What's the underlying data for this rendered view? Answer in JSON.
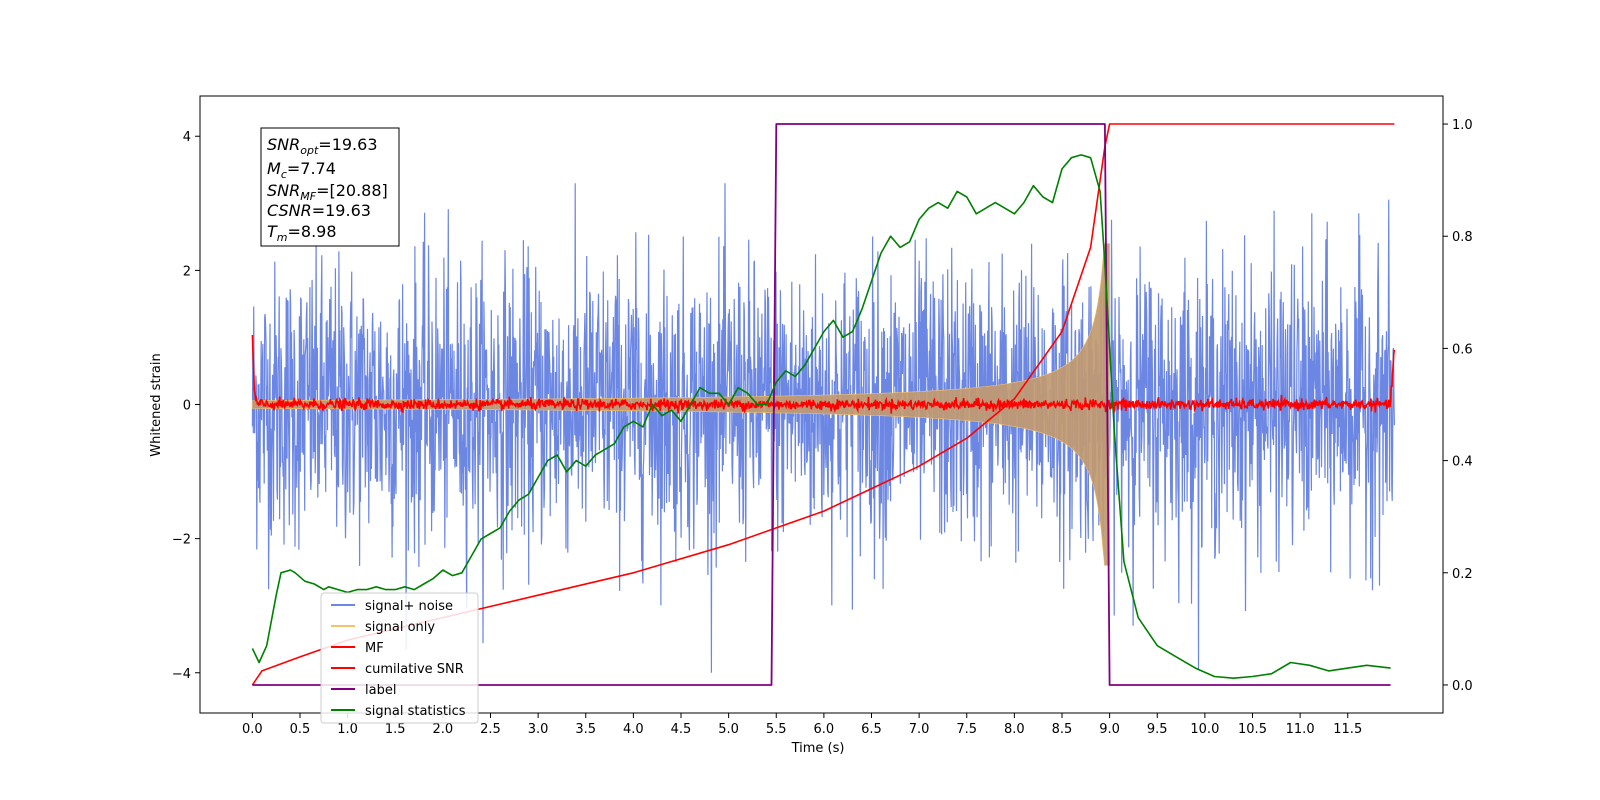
{
  "chart_data": {
    "type": "line",
    "title": "",
    "xlabel": "Time (s)",
    "ylabel": "Whitened strain",
    "ylabel_right": "",
    "xlim": [
      -0.55,
      12.5
    ],
    "ylim": [
      -4.6,
      4.6
    ],
    "ylim_right": [
      -0.05,
      1.05
    ],
    "x_ticks": [
      "0.0",
      "0.5",
      "1.0",
      "1.5",
      "2.0",
      "2.5",
      "3.0",
      "3.5",
      "4.0",
      "4.5",
      "5.0",
      "5.5",
      "6.0",
      "6.5",
      "7.0",
      "7.5",
      "8.0",
      "8.5",
      "9.0",
      "9.5",
      "10.0",
      "10.5",
      "11.0",
      "11.5"
    ],
    "y_ticks_left": [
      "−4",
      "−2",
      "0",
      "2",
      "4"
    ],
    "y_ticks_right": [
      "0.0",
      "0.2",
      "0.4",
      "0.6",
      "0.8",
      "1.0"
    ],
    "annotation": {
      "lines": [
        {
          "name": "SNR",
          "sub": "opt",
          "value": "=19.63"
        },
        {
          "name": "M",
          "sub": "c",
          "value": "=7.74"
        },
        {
          "name": "SNR",
          "sub": "MF",
          "value": "=[20.88]"
        },
        {
          "name": "CSNR",
          "sub": "",
          "value": "=19.63"
        },
        {
          "name": "T",
          "sub": "m",
          "value": "=8.98"
        }
      ]
    },
    "legend": {
      "placement": "lower-left",
      "entries": [
        "signal+ noise",
        "signal only",
        "MF",
        "cumilative SNR",
        "label",
        "signal statistics"
      ]
    },
    "colors": {
      "signal_noise": "#6b86e3",
      "signal_only": "#f5c26b",
      "overlap": "#c19a70",
      "mf": "#ff0000",
      "cumulative_snr": "#ff0000",
      "label": "#800080",
      "signal_statistics": "#008000"
    },
    "series": [
      {
        "name": "signal+ noise",
        "axis": "left",
        "description_values": {
          "x_start": 0.0,
          "x_end": 11.99,
          "typical_envelope": 2.3,
          "max": 3.3,
          "min": -4.0
        }
      },
      {
        "name": "signal only",
        "axis": "left",
        "chirp_start": 0.0,
        "chirp_end": 9.0,
        "peak_amplitude": 2.4
      },
      {
        "name": "MF",
        "axis": "left",
        "x": [
          0.0,
          0.02,
          0.05,
          11.95,
          11.99
        ],
        "y": [
          1.0,
          0.2,
          0.0,
          0.0,
          0.9
        ],
        "noise_amplitude": 0.08
      },
      {
        "name": "cumilative SNR",
        "axis": "right",
        "x": [
          0.0,
          0.1,
          0.5,
          1.0,
          2.0,
          3.0,
          4.0,
          5.0,
          5.5,
          6.0,
          6.5,
          7.0,
          7.5,
          8.0,
          8.5,
          8.8,
          8.95,
          9.0,
          11.99
        ],
        "y": [
          0.0,
          0.025,
          0.05,
          0.08,
          0.12,
          0.16,
          0.2,
          0.25,
          0.28,
          0.31,
          0.35,
          0.39,
          0.44,
          0.51,
          0.63,
          0.78,
          0.96,
          1.0,
          1.0
        ]
      },
      {
        "name": "label",
        "axis": "right",
        "x": [
          0.0,
          5.45,
          5.5,
          8.95,
          9.0,
          11.95
        ],
        "y": [
          0.0,
          0.0,
          1.0,
          1.0,
          0.0,
          0.0
        ]
      },
      {
        "name": "signal statistics",
        "axis": "right",
        "x": [
          0.0,
          0.07,
          0.15,
          0.25,
          0.3,
          0.4,
          0.45,
          0.55,
          0.65,
          0.75,
          0.8,
          0.9,
          1.0,
          1.1,
          1.2,
          1.3,
          1.4,
          1.5,
          1.6,
          1.7,
          1.8,
          1.9,
          2.0,
          2.1,
          2.2,
          2.3,
          2.4,
          2.5,
          2.6,
          2.7,
          2.8,
          2.9,
          3.0,
          3.1,
          3.2,
          3.3,
          3.4,
          3.5,
          3.6,
          3.7,
          3.8,
          3.9,
          4.0,
          4.1,
          4.2,
          4.3,
          4.4,
          4.5,
          4.6,
          4.7,
          4.8,
          4.9,
          5.0,
          5.1,
          5.2,
          5.3,
          5.4,
          5.5,
          5.6,
          5.7,
          5.8,
          5.9,
          6.0,
          6.1,
          6.2,
          6.3,
          6.4,
          6.5,
          6.6,
          6.7,
          6.8,
          6.9,
          7.0,
          7.1,
          7.2,
          7.3,
          7.4,
          7.5,
          7.6,
          7.7,
          7.8,
          7.9,
          8.0,
          8.1,
          8.2,
          8.3,
          8.4,
          8.5,
          8.6,
          8.7,
          8.8,
          8.9,
          8.95,
          9.05,
          9.15,
          9.3,
          9.5,
          9.7,
          9.9,
          10.1,
          10.3,
          10.5,
          10.7,
          10.9,
          11.1,
          11.3,
          11.5,
          11.7,
          11.95
        ],
        "y": [
          0.065,
          0.04,
          0.07,
          0.16,
          0.2,
          0.205,
          0.2,
          0.185,
          0.18,
          0.17,
          0.175,
          0.17,
          0.165,
          0.17,
          0.17,
          0.175,
          0.17,
          0.17,
          0.175,
          0.17,
          0.18,
          0.19,
          0.205,
          0.195,
          0.2,
          0.23,
          0.26,
          0.27,
          0.28,
          0.31,
          0.33,
          0.34,
          0.37,
          0.4,
          0.41,
          0.38,
          0.4,
          0.39,
          0.41,
          0.42,
          0.43,
          0.46,
          0.47,
          0.46,
          0.5,
          0.48,
          0.49,
          0.47,
          0.5,
          0.53,
          0.52,
          0.52,
          0.5,
          0.53,
          0.52,
          0.5,
          0.5,
          0.54,
          0.56,
          0.55,
          0.57,
          0.6,
          0.63,
          0.65,
          0.62,
          0.63,
          0.67,
          0.72,
          0.77,
          0.8,
          0.78,
          0.79,
          0.83,
          0.85,
          0.86,
          0.85,
          0.88,
          0.87,
          0.84,
          0.85,
          0.86,
          0.85,
          0.84,
          0.86,
          0.89,
          0.87,
          0.86,
          0.92,
          0.94,
          0.945,
          0.94,
          0.88,
          0.75,
          0.45,
          0.22,
          0.12,
          0.07,
          0.05,
          0.03,
          0.015,
          0.012,
          0.015,
          0.02,
          0.04,
          0.035,
          0.025,
          0.03,
          0.035,
          0.03
        ]
      }
    ]
  }
}
